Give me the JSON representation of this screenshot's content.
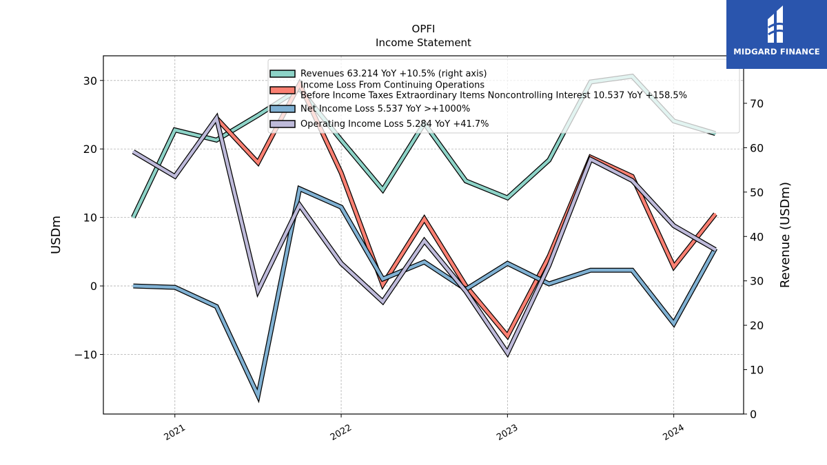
{
  "chart_data": {
    "type": "line",
    "title": "OPFI",
    "subtitle": "Income Statement",
    "ylabel": "USDm",
    "ylabel_right": "Revenue (USDm)",
    "ylim": [
      -18.7,
      33.6
    ],
    "ylim_right": [
      0,
      80.7
    ],
    "yticks": [
      -10,
      0,
      10,
      20,
      30
    ],
    "yticks_right": [
      0,
      10,
      20,
      30,
      40,
      50,
      60,
      70
    ],
    "xlim": [
      2020.57,
      2024.42
    ],
    "xticks": [
      {
        "v": 2021,
        "label": "2021"
      },
      {
        "v": 2022,
        "label": "2022"
      },
      {
        "v": 2023,
        "label": "2023"
      },
      {
        "v": 2024,
        "label": "2024"
      }
    ],
    "grid": true,
    "legend_position": "top-center",
    "x": [
      2020.75,
      2021.0,
      2021.25,
      2021.5,
      2021.75,
      2022.0,
      2022.25,
      2022.5,
      2022.75,
      2023.0,
      2023.25,
      2023.5,
      2023.75,
      2024.0,
      2024.25
    ],
    "series": [
      {
        "name": "Revenues  63.214 YoY +10.5% (right axis)",
        "axis": "right",
        "color": "#8dd3c7",
        "values": [
          44.3,
          64.0,
          61.7,
          67.3,
          73.3,
          61.7,
          50.5,
          65.5,
          52.5,
          48.7,
          57.2,
          74.8,
          76.1,
          66.0,
          63.2
        ]
      },
      {
        "name": "Income Loss From Continuing Operations\nBefore Income Taxes Extraordinary Items Noncontrolling Interest  10.537 YoY +158.5%",
        "axis": "left",
        "color": "#fb8072",
        "values": [
          null,
          null,
          24.5,
          18.0,
          29.5,
          16.5,
          0.2,
          9.8,
          0.0,
          -7.3,
          4.3,
          18.8,
          16.0,
          2.8,
          10.5
        ]
      },
      {
        "name": "Net Income Loss  5.537 YoY >+1000%",
        "axis": "left",
        "color": "#80b1d3",
        "values": [
          0.0,
          -0.2,
          -3.0,
          -16.0,
          14.2,
          11.5,
          1.0,
          3.5,
          -0.5,
          3.3,
          0.3,
          2.3,
          2.3,
          -5.5,
          5.5
        ]
      },
      {
        "name": "Operating Income Loss  5.284 YoY +41.7%",
        "axis": "left",
        "color": "#bebada",
        "values": [
          19.6,
          16.0,
          24.5,
          -0.7,
          11.8,
          3.3,
          -2.3,
          6.6,
          -0.8,
          -9.8,
          3.0,
          18.5,
          15.4,
          8.8,
          5.3
        ]
      }
    ]
  },
  "brand": {
    "name": "MIDGARD FINANCE",
    "bg_color": "#2a55ad"
  }
}
